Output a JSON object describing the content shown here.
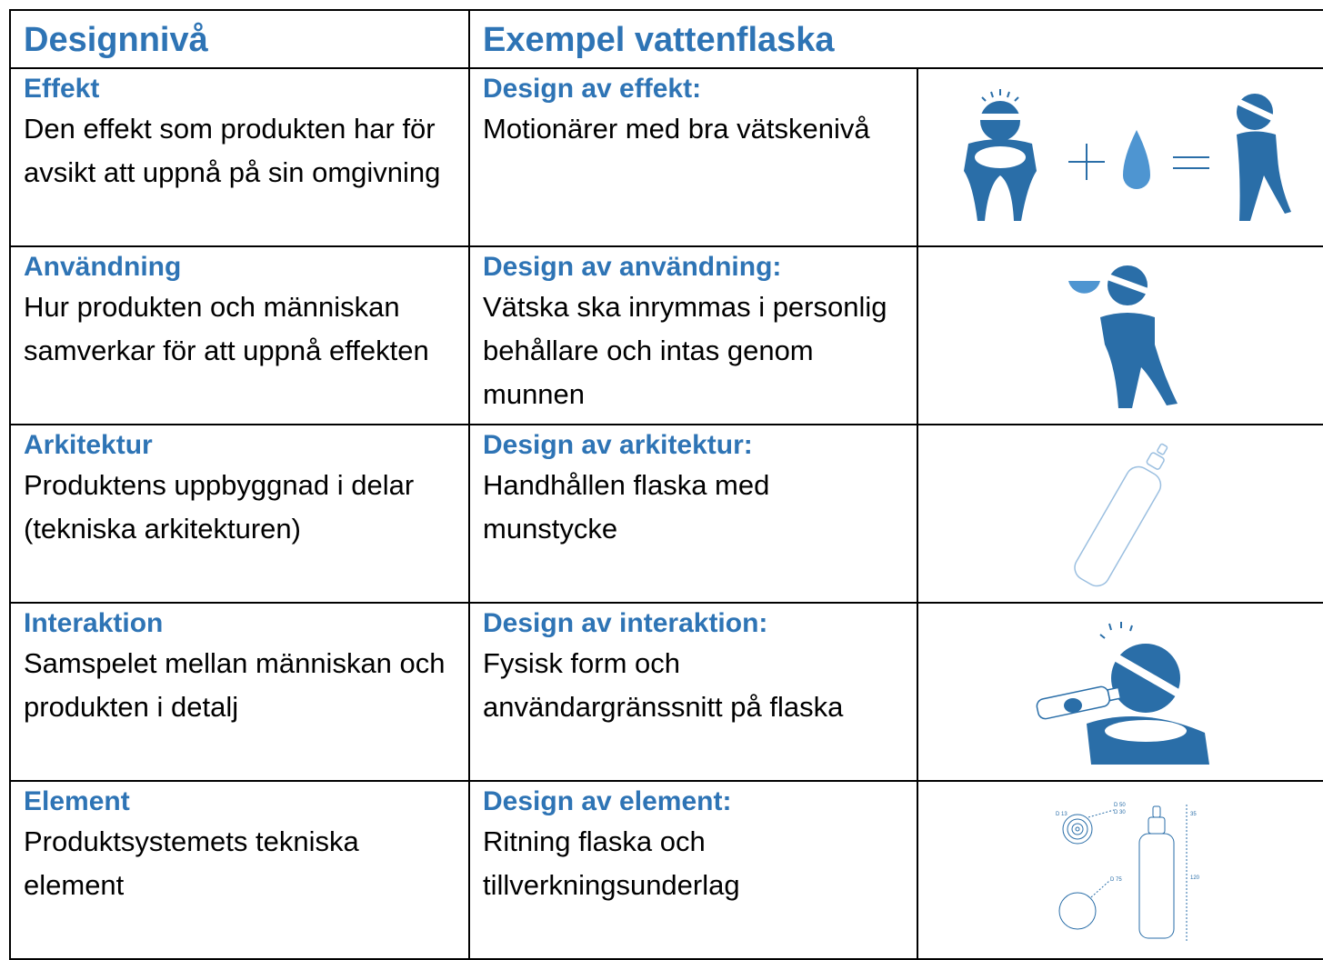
{
  "header": {
    "level": "Designnivå",
    "example": "Exempel vattenflaska"
  },
  "rows": [
    {
      "level": "Effekt",
      "level_desc": "Den effekt som produkten har för avsikt att uppnå på sin omgivning",
      "design": "Design av effekt:",
      "design_desc": "Motionärer med bra vätskenivå"
    },
    {
      "level": "Användning",
      "level_desc": "Hur produkten och människan samverkar för att uppnå effekten",
      "design": "Design av användning:",
      "design_desc": "Vätska ska inrymmas i personlig behållare och intas genom munnen"
    },
    {
      "level": "Arkitektur",
      "level_desc": "Produktens uppbyggnad i delar (tekniska arkitekturen)",
      "design": "Design av arkitektur:",
      "design_desc": "Handhållen flaska med munstycke"
    },
    {
      "level": "Interaktion",
      "level_desc": "Samspelet mellan människan och produkten i detalj",
      "design": "Design av interaktion:",
      "design_desc": "Fysisk form och användargränssnitt på flaska"
    },
    {
      "level": "Element",
      "level_desc": "Produktsystemets tekniska element",
      "design": "Design av element:",
      "design_desc": "Ritning flaska och tillverkningsunderlag"
    }
  ],
  "drawing_labels": [
    "D 13",
    "D 50",
    "D 30",
    "D 75",
    "35",
    "120"
  ]
}
